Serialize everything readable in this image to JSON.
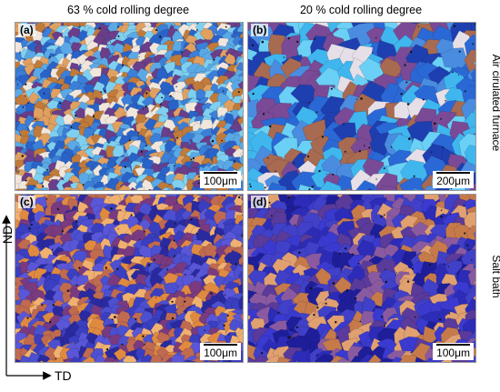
{
  "columns": [
    {
      "title": "63 % cold rolling degree"
    },
    {
      "title": "20 % cold rolling degree"
    }
  ],
  "rows": [
    {
      "title": "Air cirulated furnace"
    },
    {
      "title": "Salt bath"
    }
  ],
  "panels": [
    {
      "label": "(a)",
      "scale": "100μm",
      "palette": [
        "#2a63c8",
        "#5aa9e6",
        "#7fd0f0",
        "#c07a3a",
        "#e0a060",
        "#6a3e8a",
        "#f0e6dc",
        "#3b7fd8"
      ]
    },
    {
      "label": "(b)",
      "scale": "200μm",
      "palette": [
        "#2a68d6",
        "#3fb6ee",
        "#6ad0f5",
        "#7a4a96",
        "#e6dfe8",
        "#a86a50",
        "#1e3fb0",
        "#4a8ce0"
      ]
    },
    {
      "label": "(c)",
      "scale": "100μm",
      "palette": [
        "#3a3ec0",
        "#5a56d8",
        "#e08a40",
        "#f0b070",
        "#7a3a80",
        "#2a2aa0",
        "#c06a50",
        "#4b4fd0"
      ]
    },
    {
      "label": "(d)",
      "scale": "100μm",
      "palette": [
        "#2c2cb8",
        "#3a3ad0",
        "#5a3a9a",
        "#c67a4a",
        "#e0a070",
        "#1e1e9a",
        "#8a5aa0",
        "#4040c8"
      ]
    }
  ],
  "axes": {
    "vertical": "ND",
    "horizontal": "TD"
  }
}
